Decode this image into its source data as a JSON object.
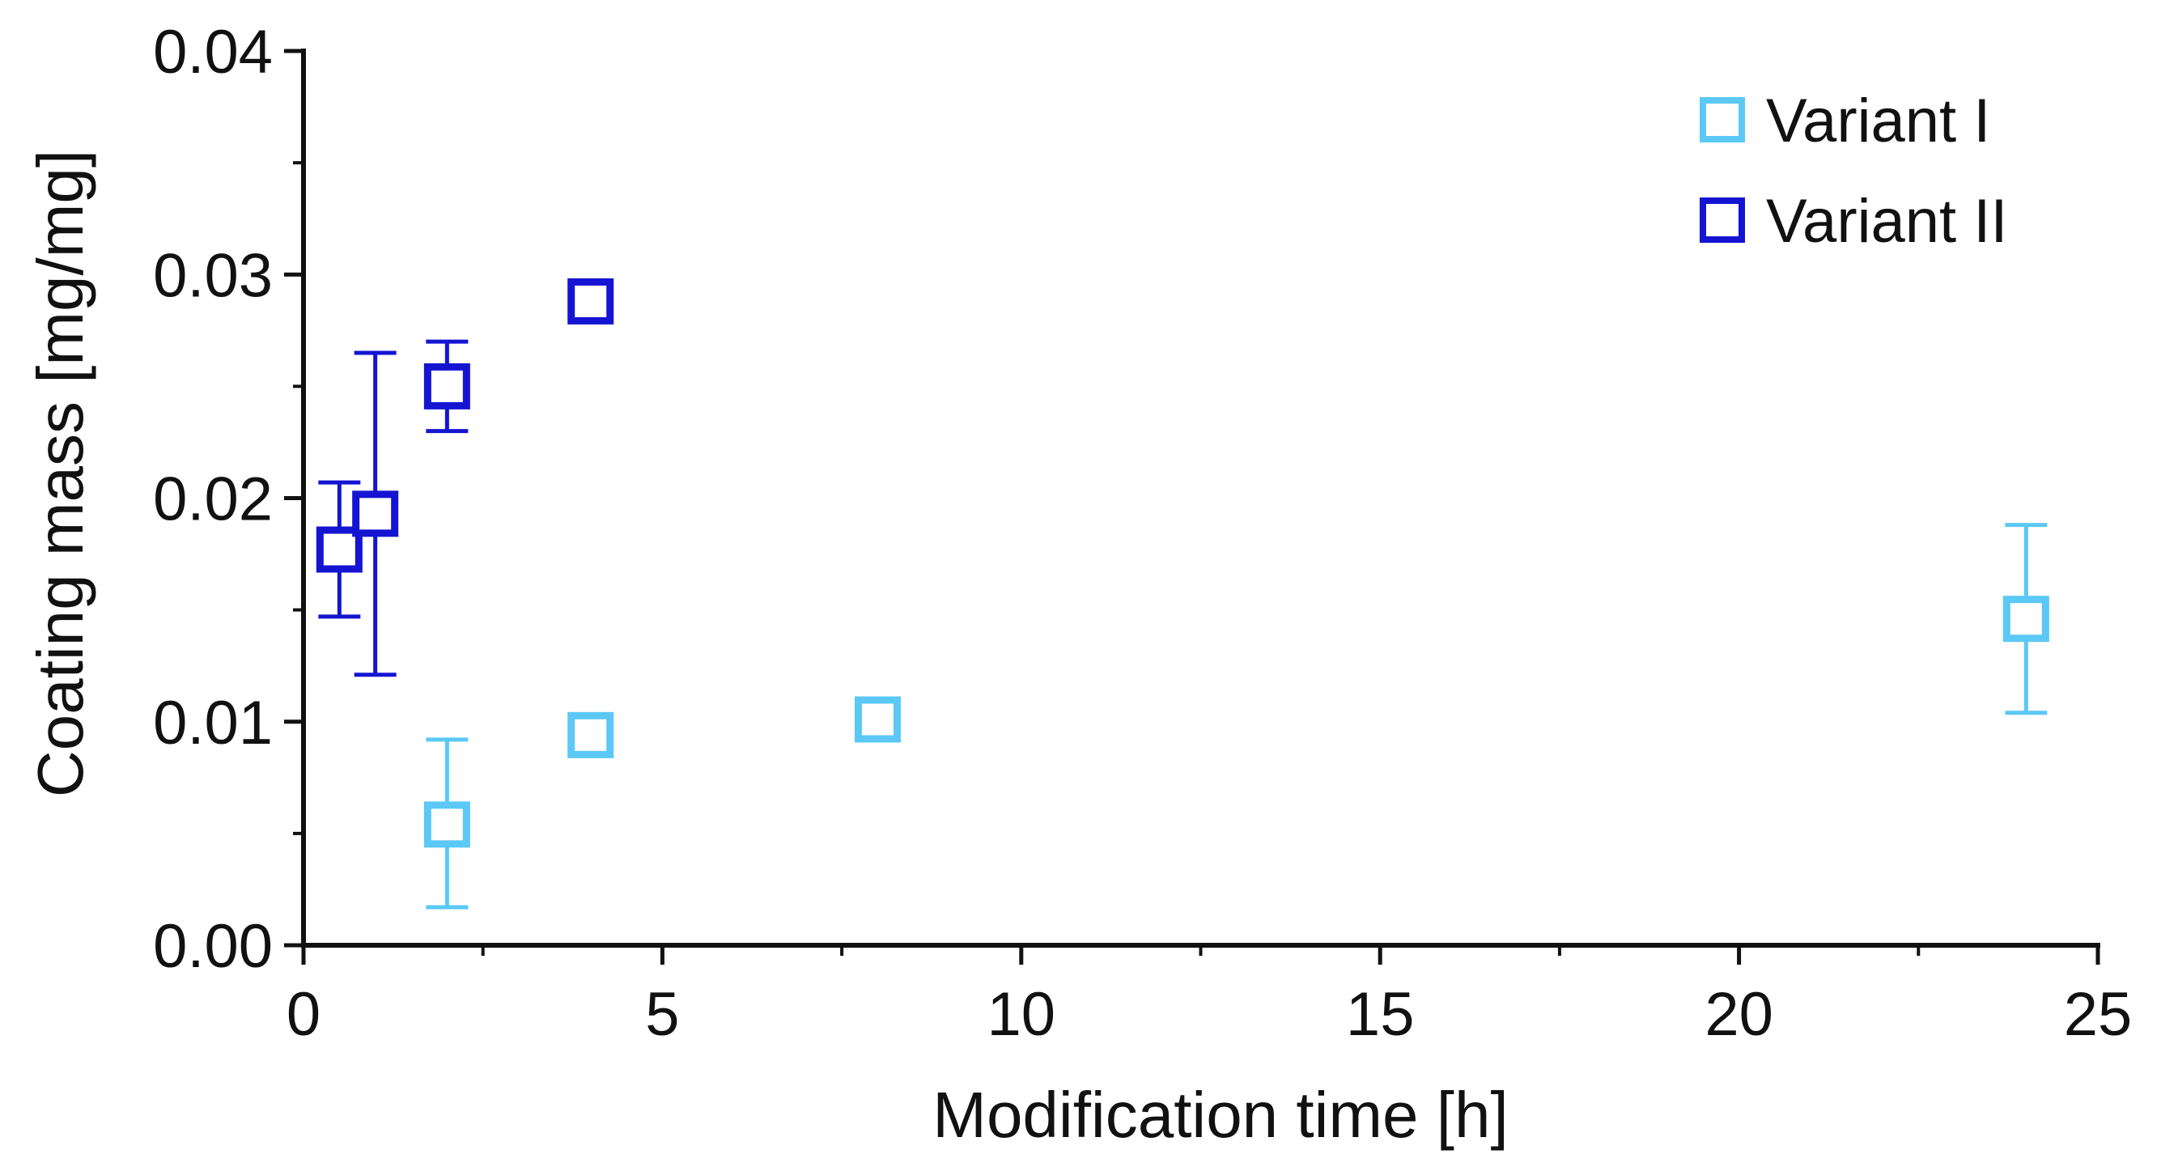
{
  "chart_data": {
    "type": "scatter",
    "title": "",
    "xlabel": "Modification time [h]",
    "ylabel": "Coating mass [mg/mg]",
    "xlim": [
      0,
      25
    ],
    "ylim": [
      0,
      0.04
    ],
    "x_ticks": [
      0,
      5,
      10,
      15,
      20,
      25
    ],
    "x_tick_labels": [
      "0",
      "5",
      "10",
      "15",
      "20",
      "25"
    ],
    "y_ticks": [
      0,
      0.01,
      0.02,
      0.03,
      0.04
    ],
    "y_tick_labels": [
      "0.00",
      "0.01",
      "0.02",
      "0.03",
      "0.04"
    ],
    "x_minor_ticks": [
      2.5,
      7.5,
      12.5,
      17.5,
      22.5
    ],
    "y_minor_ticks": [
      0.005,
      0.015,
      0.025,
      0.035
    ],
    "grid": false,
    "legend_position": "top-right",
    "marker": "open-square",
    "series": [
      {
        "name": "Variant I",
        "color": "#5BC8F5",
        "points": [
          {
            "x": 2,
            "y": 0.0054,
            "err_low": 0.0017,
            "err_high": 0.0092
          },
          {
            "x": 4,
            "y": 0.0094
          },
          {
            "x": 8,
            "y": 0.0101
          },
          {
            "x": 24,
            "y": 0.0146,
            "err_low": 0.0104,
            "err_high": 0.0188
          }
        ]
      },
      {
        "name": "Variant II",
        "color": "#1414D2",
        "points": [
          {
            "x": 0.5,
            "y": 0.0177,
            "err_low": 0.0147,
            "err_high": 0.0207
          },
          {
            "x": 1,
            "y": 0.0193,
            "err_low": 0.0121,
            "err_high": 0.0265
          },
          {
            "x": 2,
            "y": 0.025,
            "err_low": 0.023,
            "err_high": 0.027
          },
          {
            "x": 4,
            "y": 0.0288
          }
        ]
      }
    ]
  }
}
